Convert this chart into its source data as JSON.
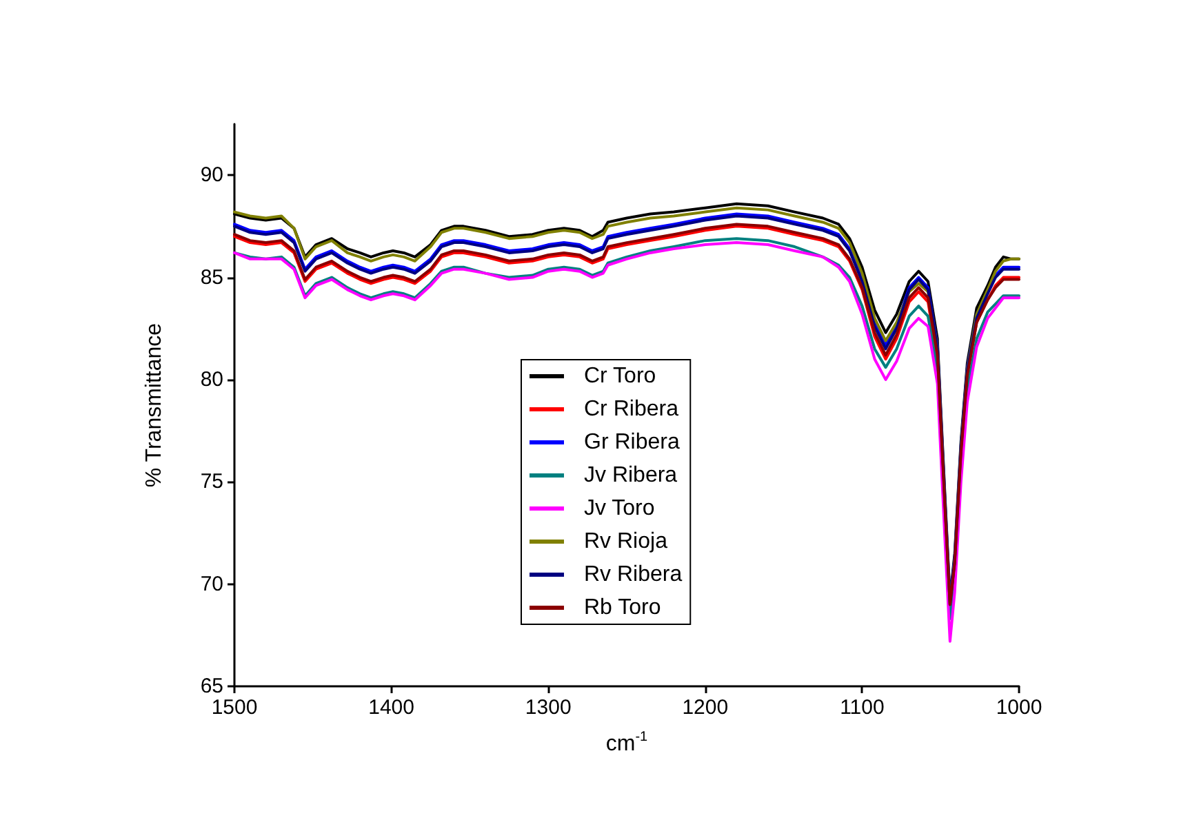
{
  "chart_data": {
    "type": "line",
    "xlabel": "cm$^{-1}$",
    "ylabel": "% Transmittance",
    "xlim": [
      1500,
      1000
    ],
    "ylim": [
      65,
      92.5
    ],
    "xticks": [
      1500,
      1400,
      1300,
      1200,
      1100,
      1000
    ],
    "yticks": [
      65,
      70,
      75,
      80,
      85,
      90
    ],
    "grid": false,
    "legend": "center",
    "marker": "none",
    "line_style": "solid",
    "x": [
      1500,
      1490,
      1480,
      1470,
      1462,
      1455,
      1448,
      1438,
      1428,
      1420,
      1413,
      1405,
      1399,
      1392,
      1385,
      1375,
      1368,
      1360,
      1354,
      1340,
      1325,
      1310,
      1300,
      1290,
      1280,
      1272,
      1265,
      1262,
      1250,
      1235,
      1220,
      1200,
      1180,
      1160,
      1143,
      1125,
      1115,
      1108,
      1100,
      1092,
      1085,
      1078,
      1070,
      1064,
      1058,
      1052,
      1047,
      1044,
      1041,
      1037,
      1033,
      1027,
      1020,
      1015,
      1010,
      1005,
      1000
    ],
    "series": [
      {
        "name": "Cr Toro",
        "color": "#000000",
        "values": [
          88.1,
          87.9,
          87.8,
          87.9,
          87.4,
          86.0,
          86.6,
          86.9,
          86.4,
          86.2,
          86.0,
          86.2,
          86.3,
          86.2,
          86.0,
          86.6,
          87.3,
          87.5,
          87.5,
          87.3,
          87.0,
          87.1,
          87.3,
          87.4,
          87.3,
          87.0,
          87.3,
          87.7,
          87.9,
          88.1,
          88.2,
          88.4,
          88.6,
          88.5,
          88.2,
          87.9,
          87.6,
          86.9,
          85.5,
          83.4,
          82.3,
          83.2,
          84.8,
          85.3,
          84.8,
          82.0,
          74.0,
          69.3,
          71.5,
          77.0,
          80.8,
          83.5,
          84.6,
          85.5,
          86.0,
          85.9,
          85.9
        ]
      },
      {
        "name": "Cr Ribera",
        "color": "#ff0000",
        "values": [
          87.0,
          86.7,
          86.6,
          86.7,
          86.2,
          84.8,
          85.4,
          85.7,
          85.2,
          84.9,
          84.7,
          84.9,
          85.0,
          84.9,
          84.7,
          85.3,
          86.0,
          86.2,
          86.2,
          86.0,
          85.7,
          85.8,
          86.0,
          86.1,
          86.0,
          85.7,
          85.9,
          86.4,
          86.6,
          86.8,
          87.0,
          87.3,
          87.5,
          87.4,
          87.1,
          86.8,
          86.5,
          85.8,
          84.4,
          82.1,
          81.0,
          82.0,
          83.8,
          84.3,
          83.8,
          81.0,
          73.3,
          69.0,
          71.0,
          76.4,
          80.2,
          82.8,
          83.9,
          84.6,
          85.0,
          85.0,
          85.0
        ]
      },
      {
        "name": "Gr Ribera",
        "color": "#0000ff",
        "values": [
          87.6,
          87.3,
          87.2,
          87.3,
          86.8,
          85.4,
          86.0,
          86.3,
          85.8,
          85.5,
          85.3,
          85.5,
          85.6,
          85.5,
          85.3,
          85.9,
          86.6,
          86.8,
          86.8,
          86.6,
          86.3,
          86.4,
          86.6,
          86.7,
          86.6,
          86.3,
          86.5,
          87.0,
          87.2,
          87.4,
          87.6,
          87.9,
          88.1,
          88.0,
          87.7,
          87.4,
          87.1,
          86.4,
          85.0,
          82.8,
          81.7,
          82.7,
          84.5,
          85.0,
          84.5,
          81.7,
          73.8,
          69.2,
          71.3,
          76.8,
          80.6,
          83.2,
          84.3,
          85.1,
          85.5,
          85.5,
          85.5
        ]
      },
      {
        "name": "Jv Ribera",
        "color": "#008080",
        "values": [
          86.2,
          86.0,
          85.9,
          86.0,
          85.5,
          84.1,
          84.7,
          85.0,
          84.5,
          84.2,
          84.0,
          84.2,
          84.3,
          84.2,
          84.0,
          84.7,
          85.3,
          85.5,
          85.5,
          85.2,
          85.0,
          85.1,
          85.4,
          85.5,
          85.4,
          85.1,
          85.3,
          85.7,
          86.0,
          86.3,
          86.5,
          86.8,
          86.9,
          86.8,
          86.5,
          86.0,
          85.6,
          85.0,
          83.6,
          81.5,
          80.6,
          81.5,
          83.1,
          83.6,
          83.1,
          80.4,
          72.7,
          68.3,
          70.5,
          75.8,
          79.5,
          82.0,
          83.3,
          83.7,
          84.1,
          84.1,
          84.1
        ]
      },
      {
        "name": "Jv Toro",
        "color": "#ff00ff",
        "values": [
          86.2,
          85.9,
          85.9,
          85.9,
          85.4,
          84.0,
          84.6,
          84.9,
          84.4,
          84.1,
          83.9,
          84.1,
          84.2,
          84.1,
          83.9,
          84.6,
          85.2,
          85.4,
          85.4,
          85.2,
          84.9,
          85.0,
          85.3,
          85.4,
          85.3,
          85.0,
          85.2,
          85.6,
          85.9,
          86.2,
          86.4,
          86.6,
          86.7,
          86.6,
          86.3,
          86.0,
          85.5,
          84.8,
          83.2,
          81.0,
          80.0,
          80.9,
          82.5,
          83.0,
          82.6,
          79.8,
          71.8,
          67.2,
          69.6,
          75.0,
          78.9,
          81.6,
          83.0,
          83.5,
          84.0,
          84.0,
          84.0
        ]
      },
      {
        "name": "Rv Rioja",
        "color": "#808000",
        "values": [
          88.2,
          88.0,
          87.9,
          88.0,
          87.4,
          85.9,
          86.5,
          86.8,
          86.2,
          86.0,
          85.8,
          86.0,
          86.1,
          86.0,
          85.8,
          86.5,
          87.2,
          87.4,
          87.4,
          87.2,
          86.9,
          87.0,
          87.2,
          87.3,
          87.2,
          86.9,
          87.1,
          87.5,
          87.7,
          87.9,
          88.0,
          88.2,
          88.4,
          88.3,
          88.0,
          87.7,
          87.4,
          86.7,
          85.2,
          83.0,
          81.9,
          82.8,
          84.3,
          84.7,
          84.3,
          81.6,
          73.7,
          69.0,
          71.2,
          76.7,
          80.5,
          83.2,
          84.4,
          85.3,
          85.8,
          85.9,
          85.9
        ]
      },
      {
        "name": "Rv Ribera",
        "color": "#000080",
        "values": [
          87.5,
          87.2,
          87.1,
          87.2,
          86.7,
          85.3,
          85.9,
          86.2,
          85.7,
          85.4,
          85.2,
          85.4,
          85.5,
          85.4,
          85.2,
          85.8,
          86.5,
          86.7,
          86.7,
          86.5,
          86.2,
          86.3,
          86.5,
          86.6,
          86.5,
          86.2,
          86.4,
          86.9,
          87.1,
          87.3,
          87.5,
          87.8,
          88.0,
          87.9,
          87.6,
          87.3,
          87.0,
          86.3,
          84.8,
          82.6,
          81.5,
          82.5,
          84.4,
          84.9,
          84.4,
          81.5,
          73.6,
          69.0,
          71.1,
          76.6,
          80.4,
          83.0,
          84.2,
          85.0,
          85.4,
          85.4,
          85.4
        ]
      },
      {
        "name": "Rb Toro",
        "color": "#8b0000",
        "values": [
          87.1,
          86.8,
          86.7,
          86.8,
          86.3,
          84.9,
          85.5,
          85.8,
          85.3,
          85.0,
          84.8,
          85.0,
          85.1,
          85.0,
          84.8,
          85.4,
          86.1,
          86.3,
          86.3,
          86.1,
          85.8,
          85.9,
          86.1,
          86.2,
          86.1,
          85.8,
          86.0,
          86.5,
          86.7,
          86.9,
          87.1,
          87.4,
          87.6,
          87.5,
          87.2,
          86.9,
          86.6,
          85.9,
          84.5,
          82.3,
          81.2,
          82.2,
          84.0,
          84.5,
          84.0,
          81.2,
          73.4,
          69.0,
          71.0,
          76.4,
          80.2,
          82.8,
          83.9,
          84.5,
          84.9,
          84.9,
          84.9
        ]
      }
    ]
  }
}
